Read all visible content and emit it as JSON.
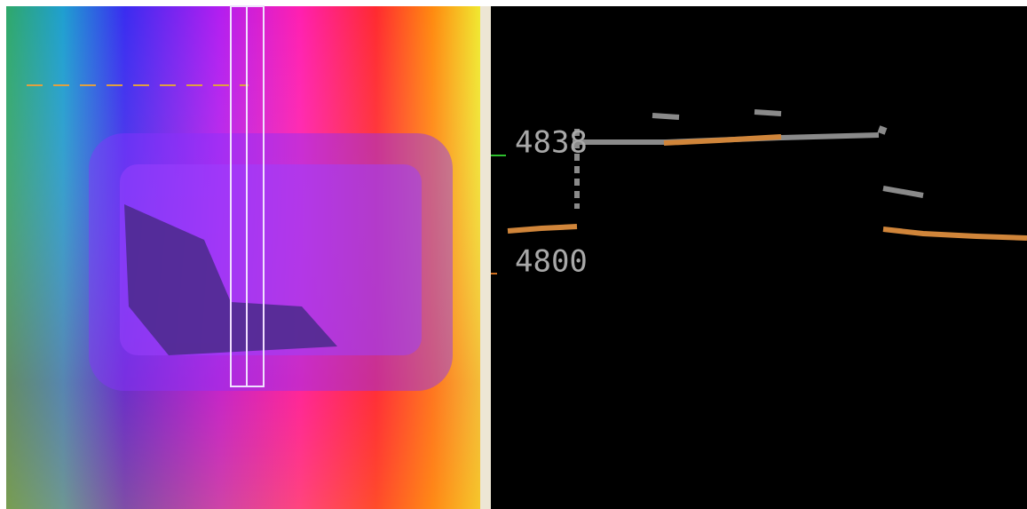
{
  "profile": {
    "elevation_labels": [
      "4838",
      "4800"
    ]
  }
}
